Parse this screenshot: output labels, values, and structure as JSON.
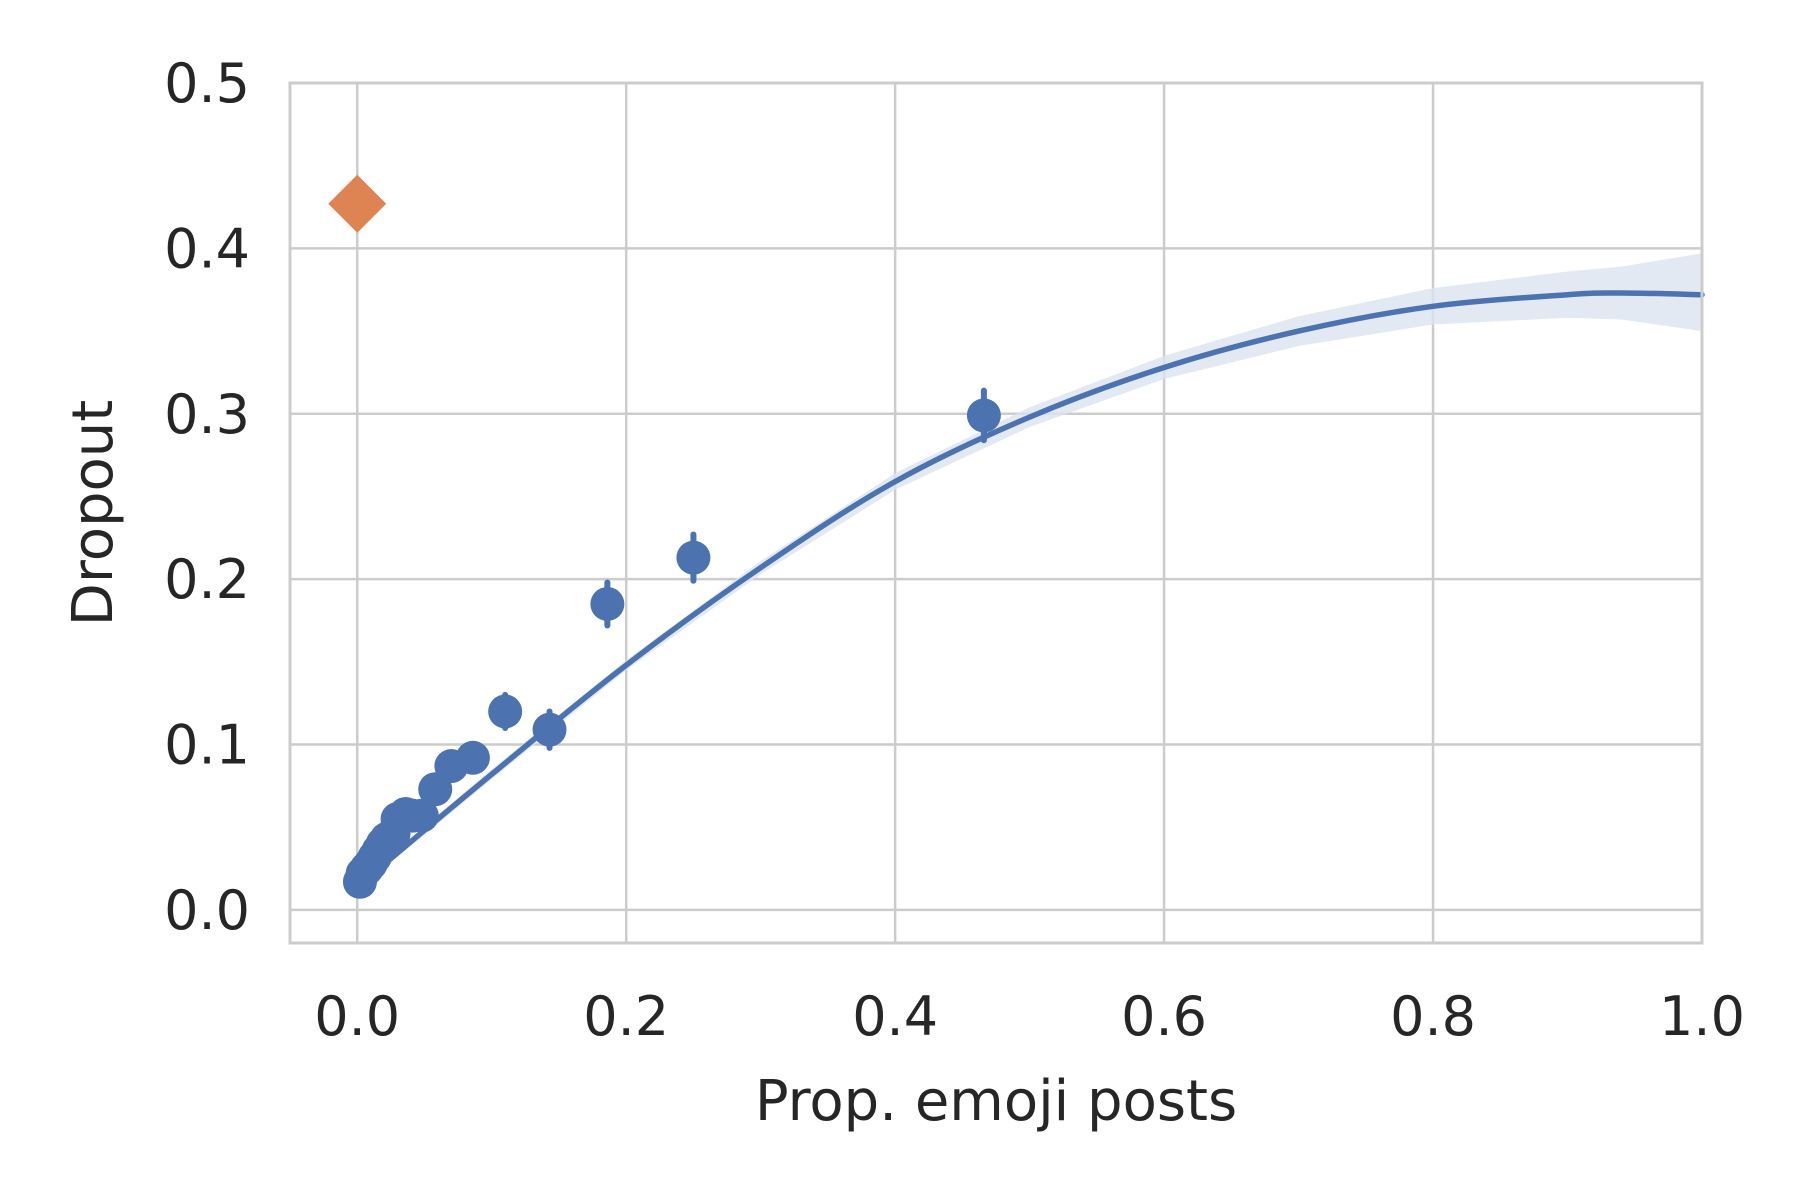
{
  "chart_data": {
    "type": "scatter",
    "title": "",
    "xlabel": "Prop. emoji posts",
    "ylabel": "Dropout",
    "xlim": [
      -0.05,
      1.0
    ],
    "ylim": [
      -0.02,
      0.5
    ],
    "xticks": [
      0.0,
      0.2,
      0.4,
      0.6,
      0.8,
      1.0
    ],
    "xtick_labels": [
      "0.0",
      "0.2",
      "0.4",
      "0.6",
      "0.8",
      "1.0"
    ],
    "yticks": [
      0.0,
      0.1,
      0.2,
      0.3,
      0.4,
      0.5
    ],
    "ytick_labels": [
      "0.0",
      "0.1",
      "0.2",
      "0.3",
      "0.4",
      "0.5"
    ],
    "grid": true,
    "legend": "none",
    "colors": {
      "binned": "#4c72b0",
      "outlier": "#dd8452",
      "band": "#dbe3f0"
    },
    "series": [
      {
        "kind": "binned-scatter",
        "color": "#4c72b0",
        "points": [
          {
            "x": 0.002,
            "y": 0.017,
            "err": 0.002
          },
          {
            "x": 0.004,
            "y": 0.022,
            "err": 0.002
          },
          {
            "x": 0.007,
            "y": 0.025,
            "err": 0.002
          },
          {
            "x": 0.01,
            "y": 0.028,
            "err": 0.002
          },
          {
            "x": 0.013,
            "y": 0.032,
            "err": 0.002
          },
          {
            "x": 0.016,
            "y": 0.036,
            "err": 0.003
          },
          {
            "x": 0.019,
            "y": 0.04,
            "err": 0.003
          },
          {
            "x": 0.022,
            "y": 0.043,
            "err": 0.003
          },
          {
            "x": 0.027,
            "y": 0.046,
            "err": 0.004
          },
          {
            "x": 0.03,
            "y": 0.055,
            "err": 0.004
          },
          {
            "x": 0.036,
            "y": 0.058,
            "err": 0.004
          },
          {
            "x": 0.041,
            "y": 0.057,
            "err": 0.005
          },
          {
            "x": 0.048,
            "y": 0.057,
            "err": 0.005
          },
          {
            "x": 0.058,
            "y": 0.073,
            "err": 0.006
          },
          {
            "x": 0.07,
            "y": 0.087,
            "err": 0.007
          },
          {
            "x": 0.086,
            "y": 0.092,
            "err": 0.008
          },
          {
            "x": 0.11,
            "y": 0.12,
            "err": 0.01
          },
          {
            "x": 0.143,
            "y": 0.109,
            "err": 0.011
          },
          {
            "x": 0.186,
            "y": 0.185,
            "err": 0.013
          },
          {
            "x": 0.25,
            "y": 0.213,
            "err": 0.014
          },
          {
            "x": 0.466,
            "y": 0.299,
            "err": 0.015
          }
        ]
      },
      {
        "kind": "marker",
        "marker": "diamond",
        "color": "#dd8452",
        "points": [
          {
            "x": 0.0,
            "y": 0.427
          }
        ]
      },
      {
        "kind": "regression-fit",
        "color": "#4c72b0",
        "x": [
          0.0,
          0.1,
          0.2,
          0.3,
          0.4,
          0.5,
          0.6,
          0.7,
          0.8,
          0.9,
          0.94,
          1.0
        ],
        "y": [
          0.014,
          0.082,
          0.148,
          0.207,
          0.259,
          0.298,
          0.328,
          0.35,
          0.365,
          0.372,
          0.373,
          0.372
        ],
        "lower": [
          0.012,
          0.079,
          0.145,
          0.203,
          0.254,
          0.292,
          0.321,
          0.341,
          0.354,
          0.358,
          0.357,
          0.35
        ],
        "upper": [
          0.016,
          0.085,
          0.151,
          0.211,
          0.264,
          0.304,
          0.335,
          0.359,
          0.376,
          0.386,
          0.389,
          0.397
        ]
      }
    ]
  }
}
